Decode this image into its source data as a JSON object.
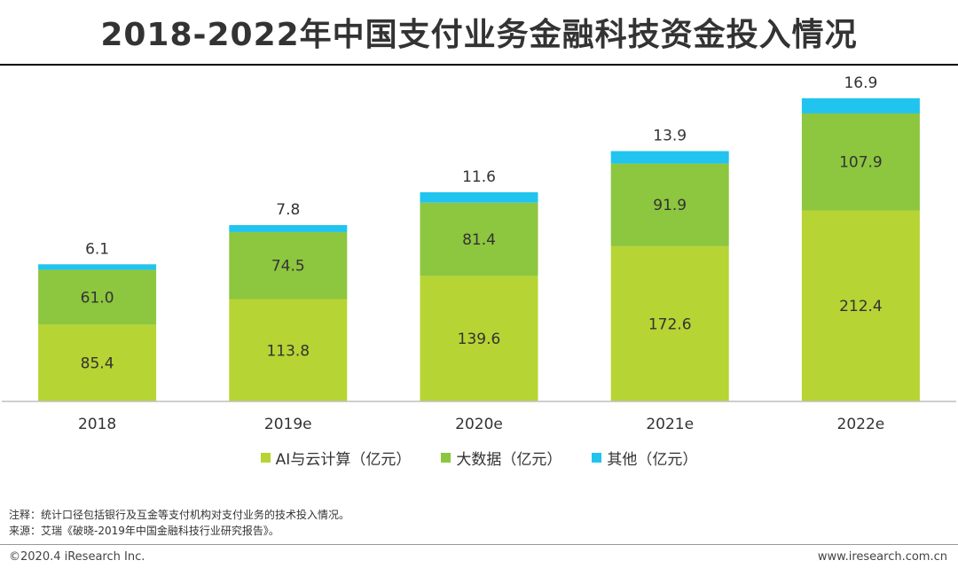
{
  "page": {
    "title": "2018-2022年中国支付业务金融科技资金投入情况",
    "note": "注释：统计口径包括银行及互金等支付机构对支付业务的技术投入情况。",
    "source": "来源：艾瑞《破晓-2019年中国金融科技行业研究报告》。",
    "copyright": "©2020.4 iResearch Inc.",
    "website": "www.iresearch.com.cn"
  },
  "chart_data": {
    "type": "bar",
    "stacked": true,
    "title": "2018-2022年中国支付业务金融科技资金投入情况",
    "categories": [
      "2018",
      "2019e",
      "2020e",
      "2021e",
      "2022e"
    ],
    "series": [
      {
        "name": "AI与云计算（亿元）",
        "color": "#b6d433",
        "values": [
          85.4,
          113.8,
          139.6,
          172.6,
          212.4
        ]
      },
      {
        "name": "大数据（亿元）",
        "color": "#8dc63f",
        "values": [
          61.0,
          74.5,
          81.4,
          91.9,
          107.9
        ]
      },
      {
        "name": "其他（亿元）",
        "color": "#21c4ee",
        "values": [
          6.1,
          7.8,
          11.6,
          13.9,
          16.9
        ]
      }
    ],
    "value_labels": [
      [
        "85.4",
        "113.8",
        "139.6",
        "172.6",
        "212.4"
      ],
      [
        "61.0",
        "74.5",
        "81.4",
        "91.9",
        "107.9"
      ],
      [
        "6.1",
        "7.8",
        "11.6",
        "13.9",
        "16.9"
      ]
    ],
    "xlabel": "",
    "ylabel": "",
    "ylim": [
      0,
      340
    ],
    "legend_position": "bottom",
    "grid": false
  }
}
